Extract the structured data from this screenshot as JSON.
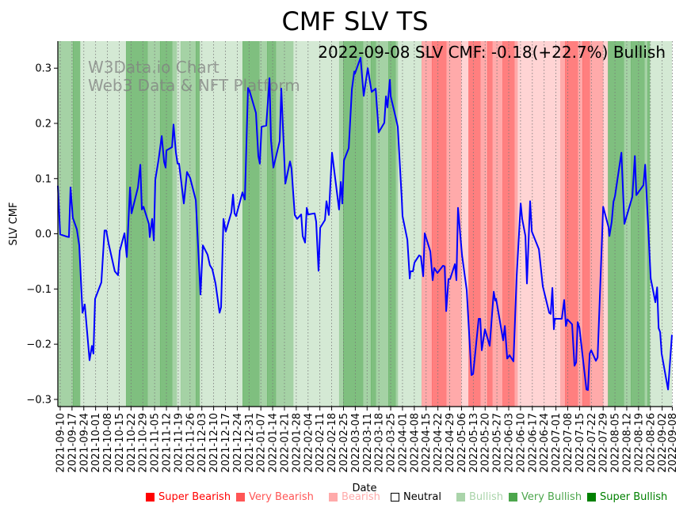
{
  "chart_data": {
    "type": "line",
    "title": "CMF SLV TS",
    "xlabel": "Date",
    "ylabel": "SLV CMF",
    "annotation": "2022-09-08 SLV CMF: -0.18(+22.7%) Bullish",
    "watermark": [
      "W3Data.io Chart",
      "Web3 Data & NFT Platform"
    ],
    "x_origin_date": "2021-09-10",
    "x_unit": "days since 2021-09-10",
    "xlim": [
      -1.4,
      362.8
    ],
    "ylim": [
      -0.313,
      0.349
    ],
    "grid": "vertical dotted at x ticks",
    "x_tick_days": [
      0,
      7,
      14,
      21,
      28,
      35,
      42,
      49,
      56,
      63,
      70,
      77,
      84,
      91,
      98,
      105,
      112,
      119,
      126,
      133,
      140,
      147,
      154,
      161,
      168,
      175,
      182,
      189,
      196,
      203,
      210,
      217,
      224,
      231,
      238,
      245,
      252,
      259,
      266,
      273,
      280,
      287,
      294,
      301,
      308,
      315,
      322,
      329,
      336,
      343,
      350,
      357,
      363
    ],
    "x_tick_labels": [
      "2021-09-10",
      "2021-09-17",
      "2021-09-24",
      "2021-10-01",
      "2021-10-08",
      "2021-10-15",
      "2021-10-22",
      "2021-10-29",
      "2021-11-05",
      "2021-11-12",
      "2021-11-19",
      "2021-11-26",
      "2021-12-03",
      "2021-12-10",
      "2021-12-17",
      "2021-12-24",
      "2021-12-31",
      "2022-01-07",
      "2022-01-14",
      "2022-01-21",
      "2022-01-28",
      "2022-02-04",
      "2022-02-11",
      "2022-02-18",
      "2022-02-25",
      "2022-03-04",
      "2022-03-11",
      "2022-03-18",
      "2022-03-25",
      "2022-04-01",
      "2022-04-08",
      "2022-04-15",
      "2022-04-22",
      "2022-04-29",
      "2022-05-06",
      "2022-05-13",
      "2022-05-20",
      "2022-05-27",
      "2022-06-03",
      "2022-06-10",
      "2022-06-17",
      "2022-06-24",
      "2022-07-01",
      "2022-07-08",
      "2022-07-15",
      "2022-07-22",
      "2022-07-29",
      "2022-08-05",
      "2022-08-12",
      "2022-08-19",
      "2022-08-26",
      "2022-09-02",
      "2022-09-08"
    ],
    "y_ticks": [
      -0.3,
      -0.2,
      -0.1,
      0.0,
      0.1,
      0.2,
      0.3
    ],
    "y_tick_labels": [
      "−0.3",
      "−0.2",
      "−0.1",
      "0.0",
      "0.1",
      "0.2",
      "0.3"
    ],
    "series": [
      {
        "name": "SLV CMF",
        "color": "#0000ff",
        "x": [
          -1.4,
          0,
          3.8,
          5.2,
          6.1,
          7.5,
          9.9,
          11.3,
          13.2,
          14.6,
          17.4,
          18.8,
          19.7,
          20.7,
          24.4,
          26.3,
          27.3,
          28.7,
          32.4,
          34.3,
          35.3,
          38.1,
          39.5,
          41.4,
          42.3,
          46.1,
          47.5,
          48.4,
          49.4,
          52.6,
          53.1,
          54.5,
          55.5,
          56.4,
          58.3,
          60.2,
          61.6,
          62.5,
          63.0,
          66.3,
          67.2,
          68.6,
          69.6,
          70.5,
          73.3,
          75.2,
          77.1,
          80.4,
          83.2,
          84.6,
          87.4,
          88.8,
          90.2,
          92.1,
          94.5,
          95.4,
          96.8,
          98.2,
          101.5,
          102.5,
          103.4,
          104.3,
          108.1,
          109.5,
          111.4,
          112.3,
          116.1,
          117.5,
          118.4,
          119.4,
          122.2,
          124.1,
          125.0,
          126.4,
          130.2,
          131.1,
          133.5,
          136.3,
          137.2,
          139.1,
          140.5,
          142.9,
          143.8,
          145.2,
          146.2,
          147.1,
          150.9,
          151.8,
          153.2,
          154.2,
          157.0,
          157.9,
          159.3,
          161.2,
          165.4,
          166.4,
          167.3,
          168.3,
          171.1,
          173.0,
          174.4,
          174.8,
          178.1,
          180.0,
          182.4,
          184.7,
          187.1,
          188.9,
          192.2,
          193.2,
          194.1,
          195.5,
          196.0,
          198.8,
          200.2,
          202.6,
          203.0,
          205.9,
          207.3,
          207.7,
          209.2,
          210.1,
          212.9,
          213.9,
          215.3,
          216.2,
          219.5,
          220.9,
          221.8,
          223.7,
          227.0,
          228.0,
          228.9,
          230.3,
          231.2,
          234.1,
          235.0,
          235.9,
          238.3,
          241.1,
          243.9,
          244.9,
          248.2,
          249.1,
          250.0,
          251.9,
          254.7,
          257.1,
          258.0,
          258.5,
          262.7,
          263.7,
          265.1,
          266.5,
          268.8,
          270.7,
          273.1,
          274.0,
          275.9,
          276.8,
          278.7,
          279.7,
          283.9,
          286.2,
          290.0,
          290.9,
          291.9,
          292.8,
          293.3,
          297.5,
          298.9,
          299.9,
          300.8,
          303.6,
          305.0,
          306.0,
          306.9,
          307.9,
          312.1,
          313.0,
          314.0,
          314.9,
          317.7,
          318.7,
          322.0,
          325.2,
          325.7,
          327.1,
          328.1,
          329.0,
          332.8,
          334.6,
          339.3,
          340.8,
          341.7,
          345.9,
          346.9,
          350.2,
          353.0,
          354.0,
          354.9,
          355.8,
          356.7,
          360.5,
          362.8
        ],
        "values": [
          0.087,
          -0.001,
          -0.005,
          -0.006,
          0.084,
          0.029,
          0.008,
          -0.021,
          -0.143,
          -0.128,
          -0.229,
          -0.203,
          -0.217,
          -0.118,
          -0.088,
          0.006,
          0.006,
          -0.018,
          -0.068,
          -0.075,
          -0.031,
          0.001,
          -0.042,
          0.084,
          0.037,
          0.084,
          0.125,
          0.044,
          0.049,
          0.018,
          -0.006,
          0.027,
          -0.012,
          0.098,
          0.133,
          0.177,
          0.13,
          0.12,
          0.151,
          0.157,
          0.198,
          0.147,
          0.127,
          0.127,
          0.055,
          0.112,
          0.101,
          0.061,
          -0.11,
          -0.021,
          -0.038,
          -0.057,
          -0.064,
          -0.09,
          -0.143,
          -0.133,
          0.027,
          0.004,
          0.039,
          0.071,
          0.037,
          0.032,
          0.075,
          0.062,
          0.264,
          0.259,
          0.219,
          0.141,
          0.127,
          0.194,
          0.196,
          0.282,
          0.17,
          0.12,
          0.168,
          0.263,
          0.091,
          0.131,
          0.118,
          0.034,
          0.027,
          0.035,
          -0.004,
          -0.016,
          0.047,
          0.035,
          0.037,
          0.022,
          -0.067,
          0.011,
          0.025,
          0.059,
          0.034,
          0.147,
          0.044,
          0.094,
          0.055,
          0.133,
          0.155,
          0.262,
          0.294,
          0.29,
          0.319,
          0.25,
          0.3,
          0.257,
          0.263,
          0.184,
          0.201,
          0.249,
          0.229,
          0.279,
          0.249,
          0.213,
          0.194,
          0.061,
          0.032,
          -0.011,
          -0.081,
          -0.068,
          -0.068,
          -0.052,
          -0.039,
          -0.041,
          -0.077,
          0.001,
          -0.032,
          -0.084,
          -0.062,
          -0.071,
          -0.058,
          -0.059,
          -0.14,
          -0.082,
          -0.082,
          -0.055,
          -0.084,
          0.047,
          -0.039,
          -0.102,
          -0.256,
          -0.254,
          -0.154,
          -0.154,
          -0.211,
          -0.173,
          -0.203,
          -0.105,
          -0.121,
          -0.118,
          -0.193,
          -0.167,
          -0.226,
          -0.22,
          -0.231,
          -0.078,
          0.055,
          0.027,
          -0.004,
          -0.09,
          0.059,
          0.004,
          -0.028,
          -0.095,
          -0.143,
          -0.145,
          -0.098,
          -0.173,
          -0.154,
          -0.154,
          -0.12,
          -0.167,
          -0.155,
          -0.164,
          -0.239,
          -0.233,
          -0.16,
          -0.17,
          -0.282,
          -0.283,
          -0.217,
          -0.211,
          -0.23,
          -0.224,
          0.049,
          0.012,
          -0.004,
          0.022,
          0.058,
          0.068,
          0.147,
          0.018,
          0.067,
          0.141,
          0.07,
          0.088,
          0.125,
          -0.081,
          -0.124,
          -0.097,
          -0.171,
          -0.178,
          -0.217,
          -0.282,
          -0.183
        ]
      }
    ],
    "state_bands": [
      [
        -1.4,
        7.5,
        "very_bullish"
      ],
      [
        7.5,
        11.8,
        "super_bullish"
      ],
      [
        11.8,
        39.0,
        "bullish"
      ],
      [
        39.0,
        51.7,
        "super_bullish"
      ],
      [
        51.7,
        59.2,
        "very_bullish"
      ],
      [
        59.2,
        66.3,
        "super_bullish"
      ],
      [
        66.3,
        69.1,
        "very_bullish"
      ],
      [
        69.1,
        71.4,
        "bullish"
      ],
      [
        71.4,
        80.4,
        "very_bullish"
      ],
      [
        80.4,
        82.7,
        "super_bullish"
      ],
      [
        82.7,
        108.1,
        "bullish"
      ],
      [
        108.1,
        118.0,
        "super_bullish"
      ],
      [
        118.0,
        122.7,
        "very_bullish"
      ],
      [
        122.7,
        127.8,
        "super_bullish"
      ],
      [
        127.8,
        138.2,
        "very_bullish"
      ],
      [
        138.2,
        165.4,
        "bullish"
      ],
      [
        165.4,
        167.8,
        "very_bullish"
      ],
      [
        167.8,
        179.5,
        "super_bullish"
      ],
      [
        179.5,
        184.2,
        "very_bullish"
      ],
      [
        184.2,
        187.1,
        "super_bullish"
      ],
      [
        187.1,
        194.6,
        "very_bullish"
      ],
      [
        194.6,
        198.8,
        "super_bullish"
      ],
      [
        198.8,
        200.2,
        "very_bullish"
      ],
      [
        200.2,
        214.3,
        "bullish"
      ],
      [
        214.3,
        220.4,
        "very_bearish"
      ],
      [
        220.4,
        228.9,
        "super_bearish"
      ],
      [
        228.9,
        237.8,
        "very_bearish"
      ],
      [
        237.8,
        242.1,
        "bearish"
      ],
      [
        242.1,
        249.1,
        "super_bearish"
      ],
      [
        249.1,
        253.3,
        "very_bearish"
      ],
      [
        253.3,
        256.2,
        "super_bearish"
      ],
      [
        256.2,
        262.3,
        "very_bearish"
      ],
      [
        262.3,
        269.3,
        "super_bearish"
      ],
      [
        269.3,
        271.2,
        "very_bearish"
      ],
      [
        271.2,
        296.6,
        "bearish"
      ],
      [
        296.6,
        299.4,
        "very_bearish"
      ],
      [
        299.4,
        306.9,
        "super_bearish"
      ],
      [
        306.9,
        309.7,
        "very_bearish"
      ],
      [
        309.7,
        314.0,
        "super_bearish"
      ],
      [
        314.0,
        322.0,
        "very_bearish"
      ],
      [
        322.0,
        324.8,
        "bearish"
      ],
      [
        324.8,
        334.2,
        "super_bullish"
      ],
      [
        334.2,
        338.4,
        "very_bullish"
      ],
      [
        338.4,
        346.4,
        "super_bullish"
      ],
      [
        346.4,
        348.3,
        "very_bullish"
      ],
      [
        348.3,
        349.7,
        "super_bullish"
      ],
      [
        349.7,
        362.8,
        "bullish"
      ]
    ],
    "legend_position": "bottom",
    "legend": [
      {
        "key": "super_bearish",
        "label": "Super Bearish",
        "color": "#ff0000"
      },
      {
        "key": "very_bearish",
        "label": "Very Bearish",
        "color": "#ff5555"
      },
      {
        "key": "bearish",
        "label": "Bearish",
        "color": "#ffaaaa"
      },
      {
        "key": "neutral",
        "label": "Neutral",
        "color": "#ffffff"
      },
      {
        "key": "bullish",
        "label": "Bullish",
        "color": "#aad4aa"
      },
      {
        "key": "very_bullish",
        "label": "Very Bullish",
        "color": "#4ca64c"
      },
      {
        "key": "super_bullish",
        "label": "Super Bullish",
        "color": "#008000"
      }
    ]
  }
}
